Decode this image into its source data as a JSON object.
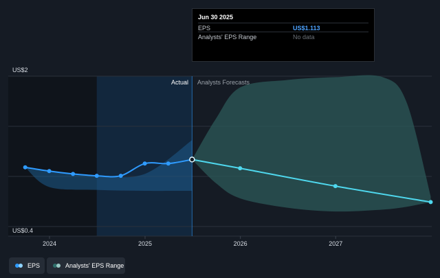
{
  "chart_data": {
    "type": "line",
    "y_axis": {
      "min_label": "US$0.4",
      "max_label": "US$2",
      "ylim": [
        0.4,
        2.0
      ]
    },
    "x_ticks": [
      "2024",
      "2025",
      "2026",
      "2027"
    ],
    "section_labels": {
      "actual": "Actual",
      "forecast": "Analysts Forecasts"
    },
    "series": [
      {
        "name": "EPS",
        "color": "#2f9bff",
        "points": [
          {
            "x": "2023-09-30",
            "y": 1.03
          },
          {
            "x": "2023-12-31",
            "y": 0.99
          },
          {
            "x": "2024-03-31",
            "y": 0.96
          },
          {
            "x": "2024-06-30",
            "y": 0.94
          },
          {
            "x": "2024-09-30",
            "y": 0.94
          },
          {
            "x": "2024-12-31",
            "y": 1.07
          },
          {
            "x": "2025-03-31",
            "y": 1.07
          },
          {
            "x": "2025-06-30",
            "y": 1.113
          }
        ]
      },
      {
        "name": "EPS forecast",
        "color": "#4fd8ee",
        "points": [
          {
            "x": "2025-06-30",
            "y": 1.113
          },
          {
            "x": "2025-12-31",
            "y": 1.02
          },
          {
            "x": "2026-12-31",
            "y": 0.83
          },
          {
            "x": "2027-12-31",
            "y": 0.66
          }
        ]
      }
    ],
    "eps_band": [
      {
        "x": "2023-09-30",
        "low": 1.03,
        "high": 1.03
      },
      {
        "x": "2023-12-31",
        "low": 0.82,
        "high": 0.99
      },
      {
        "x": "2024-06-30",
        "low": 0.79,
        "high": 0.94
      },
      {
        "x": "2024-12-31",
        "low": 0.78,
        "high": 0.96
      },
      {
        "x": "2025-06-30",
        "low": 0.78,
        "high": 1.32
      }
    ],
    "forecast_range": [
      {
        "x": "2025-06-30",
        "low": 1.113,
        "high": 1.113
      },
      {
        "x": "2025-09-30",
        "low": 0.86,
        "high": 1.55
      },
      {
        "x": "2025-12-31",
        "low": 0.7,
        "high": 1.88
      },
      {
        "x": "2026-06-30",
        "low": 0.6,
        "high": 1.96
      },
      {
        "x": "2026-12-31",
        "low": 0.56,
        "high": 1.99
      },
      {
        "x": "2027-06-30",
        "low": 0.58,
        "high": 1.99
      },
      {
        "x": "2027-09-30",
        "low": 0.61,
        "high": 1.72
      },
      {
        "x": "2027-12-31",
        "low": 0.66,
        "high": 0.72
      }
    ]
  },
  "tooltip": {
    "date": "Jun 30 2025",
    "rows": [
      {
        "label": "EPS",
        "value": "US$1.113"
      },
      {
        "label": "Analysts' EPS Range",
        "value": "No data"
      }
    ]
  },
  "legend": {
    "items": [
      {
        "label": "EPS",
        "colors": [
          "#2f9bff",
          "#8fd3ff"
        ]
      },
      {
        "label": "Analysts' EPS Range",
        "colors": [
          "#2f6e6a",
          "#9ac9c4"
        ]
      }
    ]
  }
}
